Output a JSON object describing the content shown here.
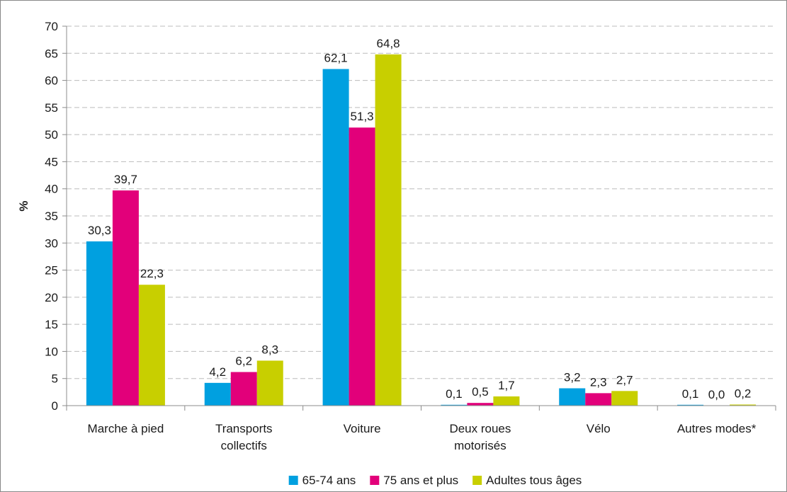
{
  "chart_data": {
    "type": "bar",
    "ylabel": "%",
    "ylim": [
      0,
      70
    ],
    "ytick_step": 5,
    "grid": true,
    "legend_position": "bottom",
    "categories": [
      [
        "Marche à pied"
      ],
      [
        "Transports",
        "collectifs"
      ],
      [
        "Voiture"
      ],
      [
        "Deux roues",
        "motorisés"
      ],
      [
        "Vélo"
      ],
      [
        "Autres modes*"
      ]
    ],
    "series": [
      {
        "name": "65-74 ans",
        "color": "#00a0e0",
        "values": [
          30.3,
          4.2,
          62.1,
          0.1,
          3.2,
          0.1
        ],
        "labels": [
          "30,3",
          "4,2",
          "62,1",
          "0,1",
          "3,2",
          "0,1"
        ]
      },
      {
        "name": "75 ans et plus",
        "color": "#e2007a",
        "values": [
          39.7,
          6.2,
          51.3,
          0.5,
          2.3,
          0.0
        ],
        "labels": [
          "39,7",
          "6,2",
          "51,3",
          "0,5",
          "2,3",
          "0,0"
        ]
      },
      {
        "name": "Adultes tous âges",
        "color": "#c8cf00",
        "values": [
          22.3,
          8.3,
          64.8,
          1.7,
          2.7,
          0.2
        ],
        "labels": [
          "22,3",
          "8,3",
          "64,8",
          "1,7",
          "2,7",
          "0,2"
        ]
      }
    ]
  }
}
